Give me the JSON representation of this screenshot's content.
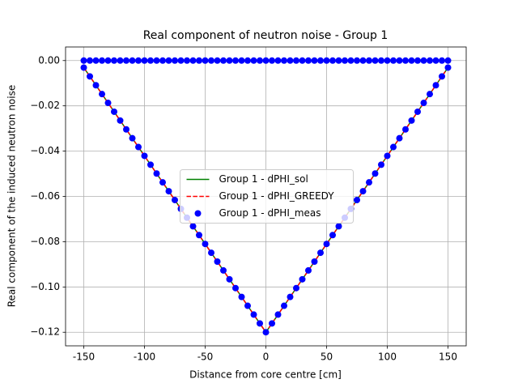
{
  "chart_data": {
    "type": "line",
    "title": "Real component of neutron noise - Group 1",
    "xlabel": "Distance from core centre [cm]",
    "ylabel": "Real component of the induced neutron noise",
    "x": [
      -150,
      -145,
      -140,
      -135,
      -130,
      -125,
      -120,
      -115,
      -110,
      -105,
      -100,
      -95,
      -90,
      -85,
      -80,
      -75,
      -70,
      -65,
      -60,
      -55,
      -50,
      -45,
      -40,
      -35,
      -30,
      -25,
      -20,
      -15,
      -10,
      -5,
      0,
      5,
      10,
      15,
      20,
      25,
      30,
      35,
      40,
      45,
      50,
      55,
      60,
      65,
      70,
      75,
      80,
      85,
      90,
      95,
      100,
      105,
      110,
      115,
      120,
      125,
      130,
      135,
      140,
      145,
      150
    ],
    "series": [
      {
        "name": "Group 1 - dPHI_sol",
        "color": "#008000",
        "linestyle": "solid",
        "kind": "line",
        "values": [
          -0.0031,
          -0.007,
          -0.0109,
          -0.0148,
          -0.0187,
          -0.0226,
          -0.0265,
          -0.0304,
          -0.0343,
          -0.0382,
          -0.0421,
          -0.046,
          -0.0499,
          -0.0538,
          -0.0577,
          -0.0616,
          -0.0655,
          -0.0694,
          -0.0732,
          -0.0771,
          -0.081,
          -0.0849,
          -0.0888,
          -0.0927,
          -0.0966,
          -0.1005,
          -0.1044,
          -0.1083,
          -0.1122,
          -0.1161,
          -0.12,
          -0.1161,
          -0.1122,
          -0.1083,
          -0.1044,
          -0.1005,
          -0.0966,
          -0.0927,
          -0.0888,
          -0.0849,
          -0.081,
          -0.0771,
          -0.0732,
          -0.0694,
          -0.0655,
          -0.0616,
          -0.0577,
          -0.0538,
          -0.0499,
          -0.046,
          -0.0421,
          -0.0382,
          -0.0343,
          -0.0304,
          -0.0265,
          -0.0226,
          -0.0187,
          -0.0148,
          -0.0109,
          -0.007,
          -0.0031
        ]
      },
      {
        "name": "Group 1 - dPHI_GREEDY",
        "color": "#ff0000",
        "linestyle": "dashed",
        "kind": "line",
        "values": [
          -0.0031,
          -0.007,
          -0.0109,
          -0.0148,
          -0.0187,
          -0.0226,
          -0.0265,
          -0.0304,
          -0.0343,
          -0.0382,
          -0.0421,
          -0.046,
          -0.0499,
          -0.0538,
          -0.0577,
          -0.0616,
          -0.0655,
          -0.0694,
          -0.0732,
          -0.0771,
          -0.081,
          -0.0849,
          -0.0888,
          -0.0927,
          -0.0966,
          -0.1005,
          -0.1044,
          -0.1083,
          -0.1122,
          -0.1161,
          -0.12,
          -0.1161,
          -0.1122,
          -0.1083,
          -0.1044,
          -0.1005,
          -0.0966,
          -0.0927,
          -0.0888,
          -0.0849,
          -0.081,
          -0.0771,
          -0.0732,
          -0.0694,
          -0.0655,
          -0.0616,
          -0.0577,
          -0.0538,
          -0.0499,
          -0.046,
          -0.0421,
          -0.0382,
          -0.0343,
          -0.0304,
          -0.0265,
          -0.0226,
          -0.0187,
          -0.0148,
          -0.0109,
          -0.007,
          -0.0031
        ]
      },
      {
        "name": "Group 1 - dPHI_meas",
        "color": "#0000ff",
        "kind": "scatter",
        "x": [
          -150,
          -145,
          -140,
          -135,
          -130,
          -125,
          -120,
          -115,
          -110,
          -105,
          -100,
          -95,
          -90,
          -85,
          -80,
          -75,
          -70,
          -65,
          -60,
          -55,
          -50,
          -45,
          -40,
          -35,
          -30,
          -25,
          -20,
          -15,
          -10,
          -5,
          0,
          5,
          10,
          15,
          20,
          25,
          30,
          35,
          40,
          45,
          50,
          55,
          60,
          65,
          70,
          75,
          80,
          85,
          90,
          95,
          100,
          105,
          110,
          115,
          120,
          125,
          130,
          135,
          140,
          145,
          150,
          -150,
          -145,
          -140,
          -135,
          -130,
          -125,
          -120,
          -115,
          -110,
          -105,
          -100,
          -95,
          -90,
          -85,
          -80,
          -75,
          -70,
          -65,
          -60,
          -55,
          -50,
          -45,
          -40,
          -35,
          -30,
          -25,
          -20,
          -15,
          -10,
          -5,
          0,
          5,
          10,
          15,
          20,
          25,
          30,
          35,
          40,
          45,
          50,
          55,
          60,
          65,
          70,
          75,
          80,
          85,
          90,
          95,
          100,
          105,
          110,
          115,
          120,
          125,
          130,
          135,
          140,
          145,
          150
        ],
        "values": [
          -0.0031,
          -0.007,
          -0.0109,
          -0.0148,
          -0.0187,
          -0.0226,
          -0.0265,
          -0.0304,
          -0.0343,
          -0.0382,
          -0.0421,
          -0.046,
          -0.0499,
          -0.0538,
          -0.0577,
          -0.0616,
          -0.0655,
          -0.0694,
          -0.0732,
          -0.0771,
          -0.081,
          -0.0849,
          -0.0888,
          -0.0927,
          -0.0966,
          -0.1005,
          -0.1044,
          -0.1083,
          -0.1122,
          -0.1161,
          -0.12,
          -0.1161,
          -0.1122,
          -0.1083,
          -0.1044,
          -0.1005,
          -0.0966,
          -0.0927,
          -0.0888,
          -0.0849,
          -0.081,
          -0.0771,
          -0.0732,
          -0.0694,
          -0.0655,
          -0.0616,
          -0.0577,
          -0.0538,
          -0.0499,
          -0.046,
          -0.0421,
          -0.0382,
          -0.0343,
          -0.0304,
          -0.0265,
          -0.0226,
          -0.0187,
          -0.0148,
          -0.0109,
          -0.007,
          -0.0031,
          0,
          0,
          0,
          0,
          0,
          0,
          0,
          0,
          0,
          0,
          0,
          0,
          0,
          0,
          0,
          0,
          0,
          0,
          0,
          0,
          0,
          0,
          0,
          0,
          0,
          0,
          0,
          0,
          0,
          0,
          0,
          0,
          0,
          0,
          0,
          0,
          0,
          0,
          0,
          0,
          0,
          0,
          0,
          0,
          0,
          0,
          0,
          0,
          0,
          0,
          0,
          0,
          0,
          0,
          0,
          0,
          0,
          0,
          0,
          0,
          0
        ]
      }
    ],
    "xlim": [
      -165,
      165
    ],
    "xticks": [
      -150,
      -100,
      -50,
      0,
      50,
      100,
      150
    ],
    "ylim": [
      -0.126,
      0.006
    ],
    "yticks": [
      {
        "value": -0.12,
        "label": "−0.12"
      },
      {
        "value": -0.1,
        "label": "−0.10"
      },
      {
        "value": -0.08,
        "label": "−0.08"
      },
      {
        "value": -0.06,
        "label": "−0.06"
      },
      {
        "value": -0.04,
        "label": "−0.04"
      },
      {
        "value": -0.02,
        "label": "−0.02"
      },
      {
        "value": 0,
        "label": "0.00"
      }
    ],
    "grid": true,
    "legend": "center"
  }
}
